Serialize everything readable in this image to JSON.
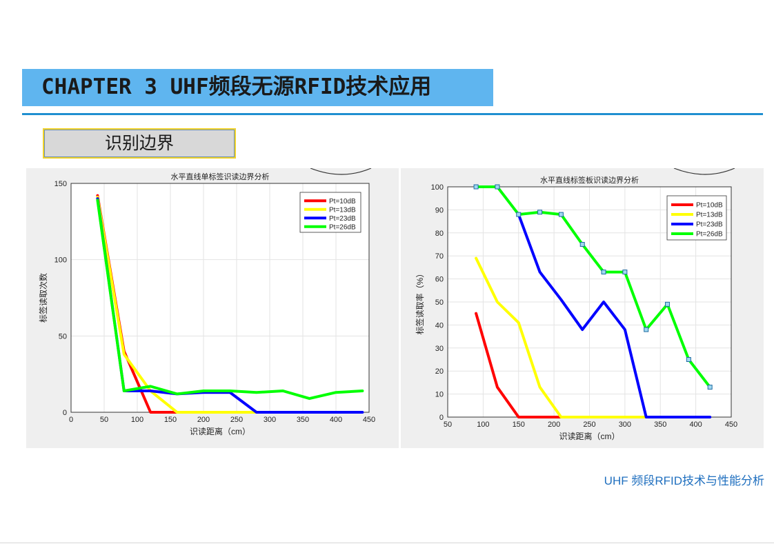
{
  "slide": {
    "chapter_title": "CHAPTER 3 UHF频段无源RFID技术应用",
    "subtitle": "识别边界",
    "footer": "UHF 频段RFID技术与性能分析"
  },
  "colors": {
    "accent": "#5fb5ef",
    "rule": "#1f8fd0",
    "footer": "#1f6fbf"
  },
  "chart_data": [
    {
      "type": "line",
      "title": "水平直线单标签识读边界分析",
      "xlabel": "识读距离（cm）",
      "ylabel": "标签读取次数",
      "xlim": [
        0,
        450
      ],
      "ylim": [
        0,
        150
      ],
      "xticks": [
        0,
        50,
        100,
        150,
        200,
        250,
        300,
        350,
        400,
        450
      ],
      "yticks": [
        0,
        50,
        100,
        150
      ],
      "grid": true,
      "legend_position": "top-right",
      "series": [
        {
          "name": "Pt=10dB",
          "color": "#ff0000",
          "markers": false,
          "x": [
            40,
            80,
            120,
            160
          ],
          "y": [
            142,
            40,
            0,
            0
          ]
        },
        {
          "name": "Pt=13dB",
          "color": "#ffff00",
          "markers": false,
          "x": [
            40,
            80,
            120,
            160,
            200,
            240,
            280
          ],
          "y": [
            141,
            38,
            14,
            0,
            0,
            0,
            0
          ]
        },
        {
          "name": "Pt=23dB",
          "color": "#0000ff",
          "markers": false,
          "x": [
            40,
            80,
            120,
            160,
            200,
            240,
            280,
            320,
            360,
            400,
            440
          ],
          "y": [
            140,
            14,
            14,
            12,
            13,
            13,
            0,
            0,
            0,
            0,
            0
          ]
        },
        {
          "name": "Pt=26dB",
          "color": "#00ff00",
          "markers": false,
          "x": [
            40,
            80,
            120,
            160,
            200,
            240,
            280,
            320,
            360,
            400,
            440
          ],
          "y": [
            139,
            14,
            17,
            12,
            14,
            14,
            13,
            14,
            9,
            13,
            14
          ]
        }
      ]
    },
    {
      "type": "line",
      "title": "水平直线标签板识读边界分析",
      "xlabel": "识读距离（cm）",
      "ylabel": "标签读取率（%）",
      "xlim": [
        50,
        450
      ],
      "ylim": [
        0,
        100
      ],
      "xticks": [
        50,
        100,
        150,
        200,
        250,
        300,
        350,
        400,
        450
      ],
      "yticks": [
        0,
        10,
        20,
        30,
        40,
        50,
        60,
        70,
        80,
        90,
        100
      ],
      "grid": true,
      "legend_position": "top-right",
      "series": [
        {
          "name": "Pt=10dB",
          "color": "#ff0000",
          "markers": false,
          "x": [
            90,
            120,
            150,
            180,
            210
          ],
          "y": [
            45,
            13,
            0,
            0,
            0
          ]
        },
        {
          "name": "Pt=13dB",
          "color": "#ffff00",
          "markers": false,
          "x": [
            90,
            120,
            150,
            180,
            210,
            240,
            270,
            300,
            330
          ],
          "y": [
            69,
            50,
            41,
            13,
            0,
            0,
            0,
            0,
            0
          ]
        },
        {
          "name": "Pt=23dB",
          "color": "#0000ff",
          "markers": false,
          "x": [
            150,
            180,
            210,
            240,
            270,
            300,
            330,
            360,
            390,
            420
          ],
          "y": [
            88,
            63,
            51,
            38,
            50,
            38,
            0,
            0,
            0,
            0
          ]
        },
        {
          "name": "Pt=26dB",
          "color": "#00ff00",
          "markers": true,
          "x": [
            90,
            120,
            150,
            180,
            210,
            240,
            270,
            300,
            330,
            360,
            390,
            420
          ],
          "y": [
            100,
            100,
            88,
            89,
            88,
            75,
            63,
            63,
            38,
            49,
            25,
            13
          ]
        }
      ]
    }
  ]
}
